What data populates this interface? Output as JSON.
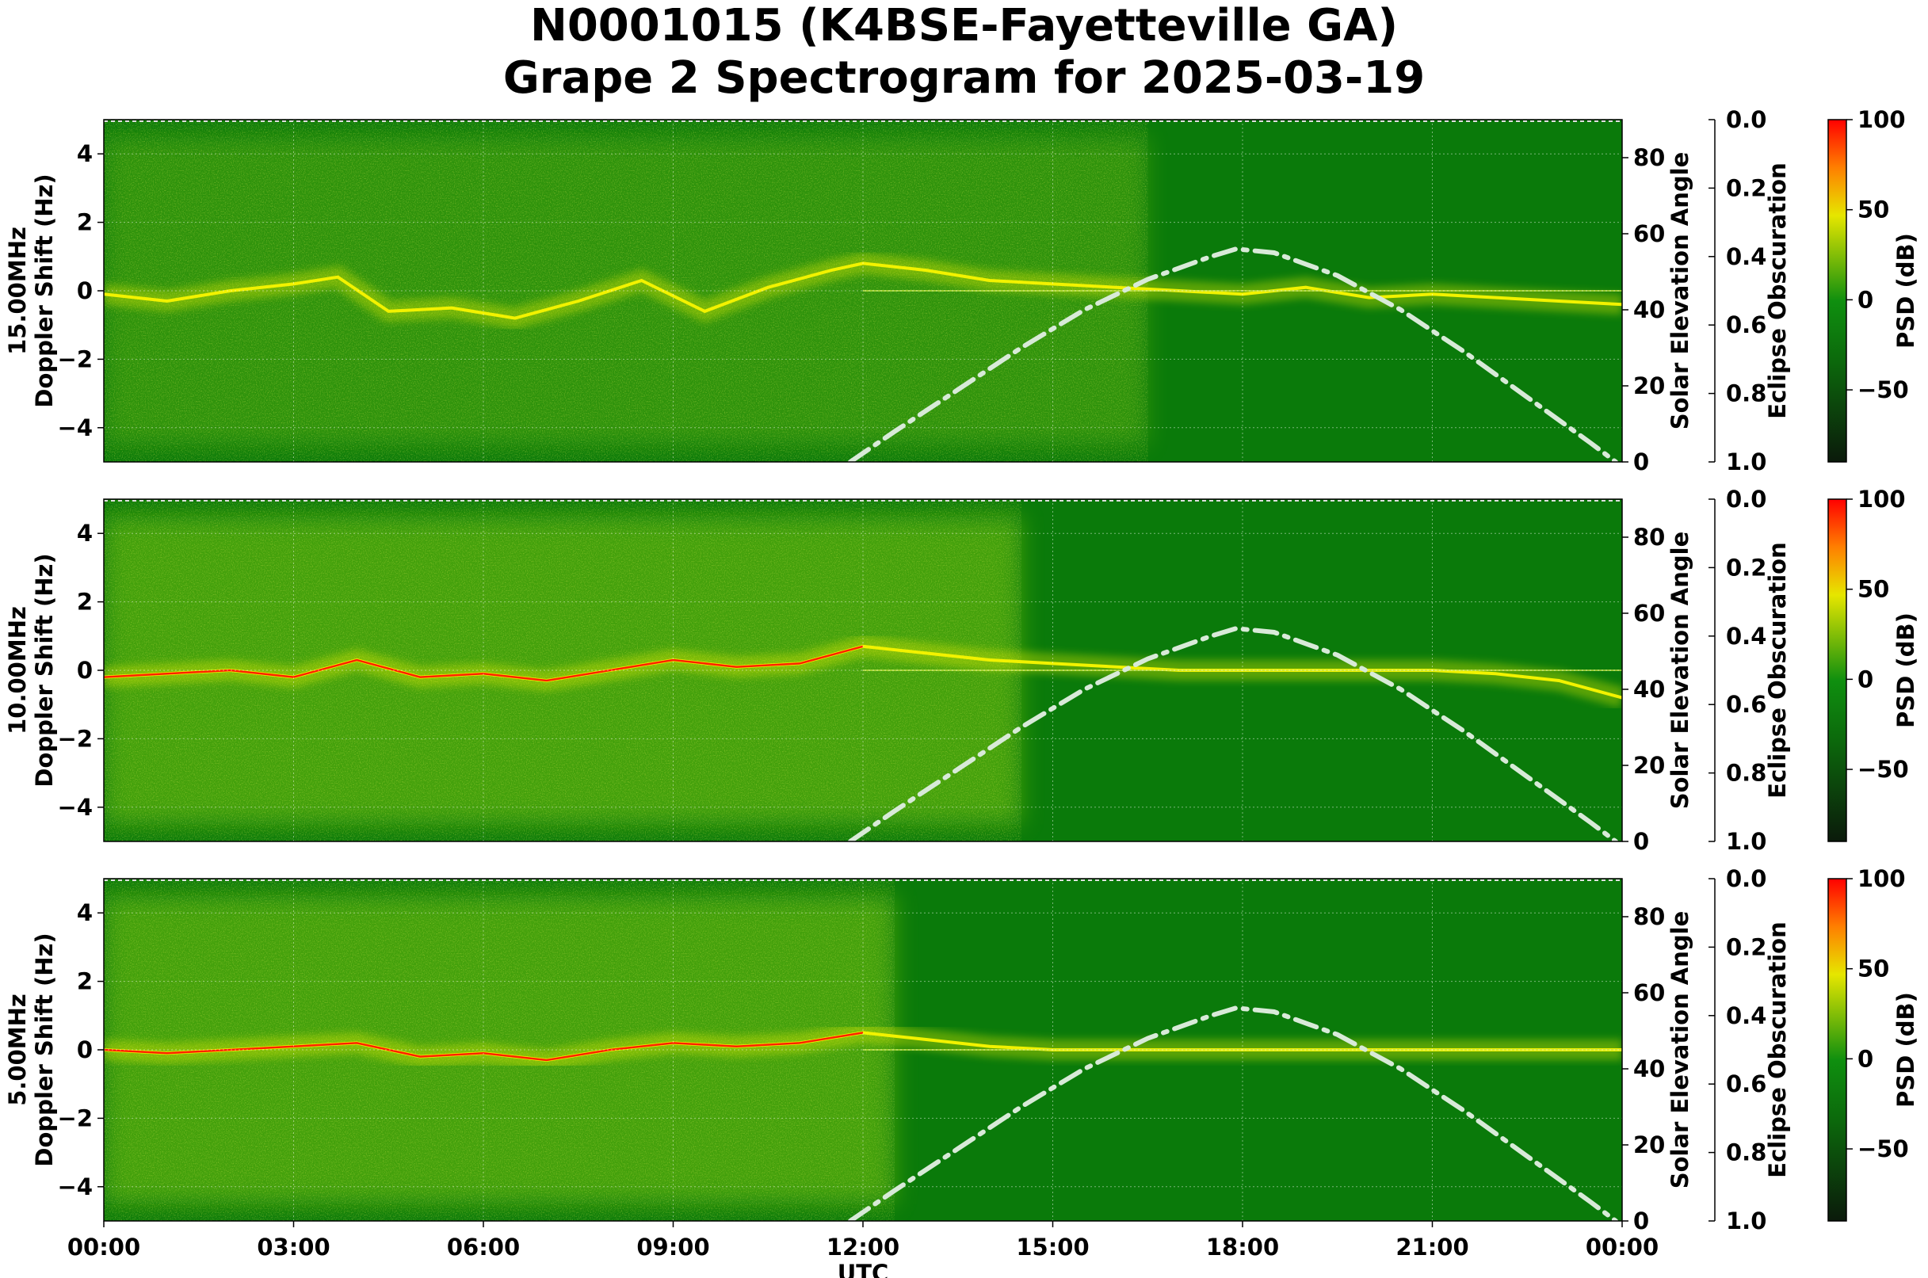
{
  "figure": {
    "title_line1": "N0001015 (K4BSE-Fayetteville GA)",
    "title_line2": "Grape 2 Spectrogram for 2025-03-19",
    "xlabel": "UTC",
    "x_ticks": [
      "00:00",
      "03:00",
      "06:00",
      "09:00",
      "12:00",
      "15:00",
      "18:00",
      "21:00",
      "00:00"
    ]
  },
  "colors": {
    "background_green": "#0a7a0a",
    "carrier_yellow": "#f2f200",
    "peak_red": "#ff2000",
    "solar_curve": "#d8ead8",
    "colormap": [
      "#0b1a0b",
      "#0c6a0c",
      "#0f8f0f",
      "#e6e600",
      "#ff7f00",
      "#ff0000"
    ]
  },
  "chart_data": [
    {
      "type": "heatmap",
      "panel": "15.00MHz",
      "ylabel_line1": "15.00MHz",
      "ylabel_line2": "Doppler Shift (Hz)",
      "xlabel": "UTC",
      "x_range_hours": [
        0,
        24
      ],
      "ylim": [
        -5,
        5
      ],
      "y_ticks": [
        "−4",
        "−2",
        "0",
        "2",
        "4"
      ],
      "y2label": "Solar Elevation Angle",
      "y2lim": [
        0,
        90
      ],
      "y2_ticks": [
        "0",
        "20",
        "40",
        "60",
        "80"
      ],
      "y3label": "Eclipse Obscuration",
      "y3lim": [
        1.0,
        0.0
      ],
      "y3_ticks": [
        "0.0",
        "0.2",
        "0.4",
        "0.6",
        "0.8",
        "1.0"
      ],
      "colorbar_label": "PSD (dB)",
      "colorbar_range": [
        -90,
        100
      ],
      "colorbar_ticks": [
        "100",
        "50",
        "0",
        "−50"
      ],
      "grid": true,
      "doppler_trace": {
        "hours": [
          0,
          1,
          2,
          3,
          3.7,
          4.5,
          5.5,
          6.5,
          7.5,
          8.5,
          9.5,
          10.5,
          11.5,
          12,
          13,
          14,
          15,
          16,
          17,
          18,
          19,
          20,
          21,
          22,
          23,
          24
        ],
        "doppler_hz": [
          -0.1,
          -0.3,
          0,
          0.2,
          0.4,
          -0.6,
          -0.5,
          -0.8,
          -0.3,
          0.3,
          -0.6,
          0.1,
          0.6,
          0.8,
          0.6,
          0.3,
          0.2,
          0.1,
          0,
          -0.1,
          0.1,
          -0.2,
          -0.1,
          -0.2,
          -0.3,
          -0.4
        ]
      },
      "solar_elevation": {
        "hours": [
          11.8,
          12.5,
          13.5,
          14.5,
          15.5,
          16.5,
          17.5,
          17.9,
          18.5,
          19.5,
          20.5,
          21.5,
          22.5,
          23.5,
          23.9
        ],
        "degrees": [
          0,
          8,
          19,
          30,
          40,
          48,
          54,
          56,
          55,
          49,
          40,
          29,
          17,
          5,
          0
        ]
      }
    },
    {
      "type": "heatmap",
      "panel": "10.00MHz",
      "ylabel_line1": "10.00MHz",
      "ylabel_line2": "Doppler Shift (Hz)",
      "xlabel": "UTC",
      "x_range_hours": [
        0,
        24
      ],
      "ylim": [
        -5,
        5
      ],
      "y_ticks": [
        "−4",
        "−2",
        "0",
        "2",
        "4"
      ],
      "y2label": "Solar Elevation Angle",
      "y2lim": [
        0,
        90
      ],
      "y2_ticks": [
        "0",
        "20",
        "40",
        "60",
        "80"
      ],
      "y3label": "Eclipse Obscuration",
      "y3lim": [
        1.0,
        0.0
      ],
      "y3_ticks": [
        "0.0",
        "0.2",
        "0.4",
        "0.6",
        "0.8",
        "1.0"
      ],
      "colorbar_label": "PSD (dB)",
      "colorbar_range": [
        -90,
        100
      ],
      "colorbar_ticks": [
        "100",
        "50",
        "0",
        "−50"
      ],
      "grid": true,
      "doppler_trace": {
        "hours": [
          0,
          1,
          2,
          3,
          4,
          5,
          6,
          7,
          8,
          9,
          10,
          11,
          12,
          13,
          14,
          15,
          16,
          17,
          18,
          19,
          20,
          21,
          22,
          23,
          24
        ],
        "doppler_hz": [
          -0.2,
          -0.1,
          0,
          -0.2,
          0.3,
          -0.2,
          -0.1,
          -0.3,
          0,
          0.3,
          0.1,
          0.2,
          0.7,
          0.5,
          0.3,
          0.2,
          0.1,
          0,
          0,
          0,
          0,
          0,
          -0.1,
          -0.3,
          -0.8
        ]
      },
      "solar_elevation": {
        "hours": [
          11.8,
          12.5,
          13.5,
          14.5,
          15.5,
          16.5,
          17.5,
          17.9,
          18.5,
          19.5,
          20.5,
          21.5,
          22.5,
          23.5,
          23.9
        ],
        "degrees": [
          0,
          8,
          19,
          30,
          40,
          48,
          54,
          56,
          55,
          49,
          40,
          29,
          17,
          5,
          0
        ]
      }
    },
    {
      "type": "heatmap",
      "panel": "5.00MHz",
      "ylabel_line1": "5.00MHz",
      "ylabel_line2": "Doppler Shift (Hz)",
      "xlabel": "UTC",
      "x_range_hours": [
        0,
        24
      ],
      "ylim": [
        -5,
        5
      ],
      "y_ticks": [
        "−4",
        "−2",
        "0",
        "2",
        "4"
      ],
      "y2label": "Solar Elevation Angle",
      "y2lim": [
        0,
        90
      ],
      "y2_ticks": [
        "0",
        "20",
        "40",
        "60",
        "80"
      ],
      "y3label": "Eclipse Obscuration",
      "y3lim": [
        1.0,
        0.0
      ],
      "y3_ticks": [
        "0.0",
        "0.2",
        "0.4",
        "0.6",
        "0.8",
        "1.0"
      ],
      "colorbar_label": "PSD (dB)",
      "colorbar_range": [
        -90,
        100
      ],
      "colorbar_ticks": [
        "100",
        "50",
        "0",
        "−50"
      ],
      "grid": true,
      "doppler_trace": {
        "hours": [
          0,
          1,
          2,
          3,
          4,
          5,
          6,
          7,
          8,
          9,
          10,
          11,
          12,
          13,
          14,
          15,
          16,
          17,
          18,
          19,
          20,
          21,
          22,
          23,
          24
        ],
        "doppler_hz": [
          0,
          -0.1,
          0,
          0.1,
          0.2,
          -0.2,
          -0.1,
          -0.3,
          0,
          0.2,
          0.1,
          0.2,
          0.5,
          0.3,
          0.1,
          0,
          0,
          0,
          0,
          0,
          0,
          0,
          0,
          0,
          0
        ]
      },
      "solar_elevation": {
        "hours": [
          11.8,
          12.5,
          13.5,
          14.5,
          15.5,
          16.5,
          17.5,
          17.9,
          18.5,
          19.5,
          20.5,
          21.5,
          22.5,
          23.5,
          23.9
        ],
        "degrees": [
          0,
          8,
          19,
          30,
          40,
          48,
          54,
          56,
          55,
          49,
          40,
          29,
          17,
          5,
          0
        ]
      }
    }
  ]
}
